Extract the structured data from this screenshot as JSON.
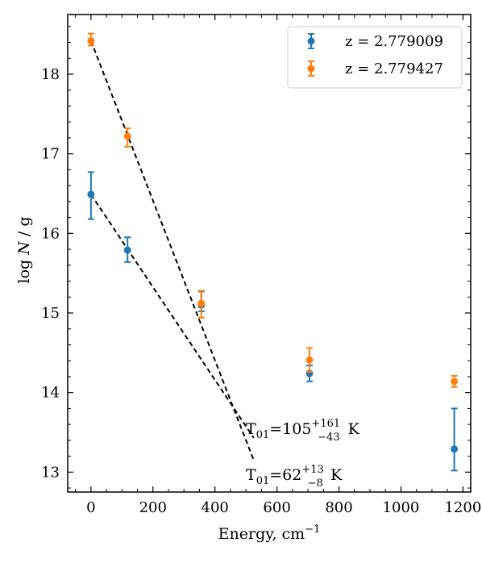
{
  "chart_data": {
    "type": "scatter",
    "xlabel": "Energy, cm",
    "xlabel_sup": "−1",
    "ylabel": "log N / g",
    "xlim": [
      -75,
      1225
    ],
    "ylim": [
      12.75,
      18.75
    ],
    "xticks": [
      0,
      200,
      400,
      600,
      800,
      1000,
      1200
    ],
    "yticks": [
      13,
      14,
      15,
      16,
      17,
      18
    ],
    "grid": false,
    "legend_position": "top-right",
    "series": [
      {
        "name": "z = 2.779009",
        "color": "#1f77b4",
        "points": [
          {
            "x": 0,
            "y": 16.49,
            "err_low": 0.31,
            "err_high": 0.28
          },
          {
            "x": 118,
            "y": 15.79,
            "err_low": 0.15,
            "err_high": 0.16
          },
          {
            "x": 356,
            "y": 15.1,
            "err_low": 0.08,
            "err_high": 0.17
          },
          {
            "x": 705,
            "y": 14.24,
            "err_low": 0.1,
            "err_high": 0.1
          },
          {
            "x": 1172,
            "y": 13.29,
            "err_low": 0.27,
            "err_high": 0.51
          }
        ]
      },
      {
        "name": "z = 2.779427",
        "color": "#ff7f0e",
        "points": [
          {
            "x": 0,
            "y": 18.42,
            "err_low": 0.06,
            "err_high": 0.09
          },
          {
            "x": 118,
            "y": 17.22,
            "err_low": 0.13,
            "err_high": 0.1
          },
          {
            "x": 356,
            "y": 15.12,
            "err_low": 0.18,
            "err_high": 0.16
          },
          {
            "x": 705,
            "y": 14.41,
            "err_low": 0.15,
            "err_high": 0.15
          },
          {
            "x": 1172,
            "y": 14.14,
            "err_low": 0.07,
            "err_high": 0.07
          }
        ]
      }
    ],
    "fit_lines": [
      {
        "label": "T01=62 +13 -8 K",
        "x": [
          0,
          525
        ],
        "y": [
          18.42,
          13.15
        ]
      },
      {
        "label": "T01=105 +161 -43 K",
        "x": [
          0,
          525
        ],
        "y": [
          16.49,
          13.43
        ]
      }
    ],
    "annotations": [
      {
        "base": "T",
        "sub": "01",
        "eq": "=105",
        "sup": "+161",
        "low": "−43",
        "unit": "K"
      },
      {
        "base": "T",
        "sub": "01",
        "eq": "=62",
        "sup": "+13",
        "low": "−8",
        "unit": "K"
      }
    ]
  }
}
